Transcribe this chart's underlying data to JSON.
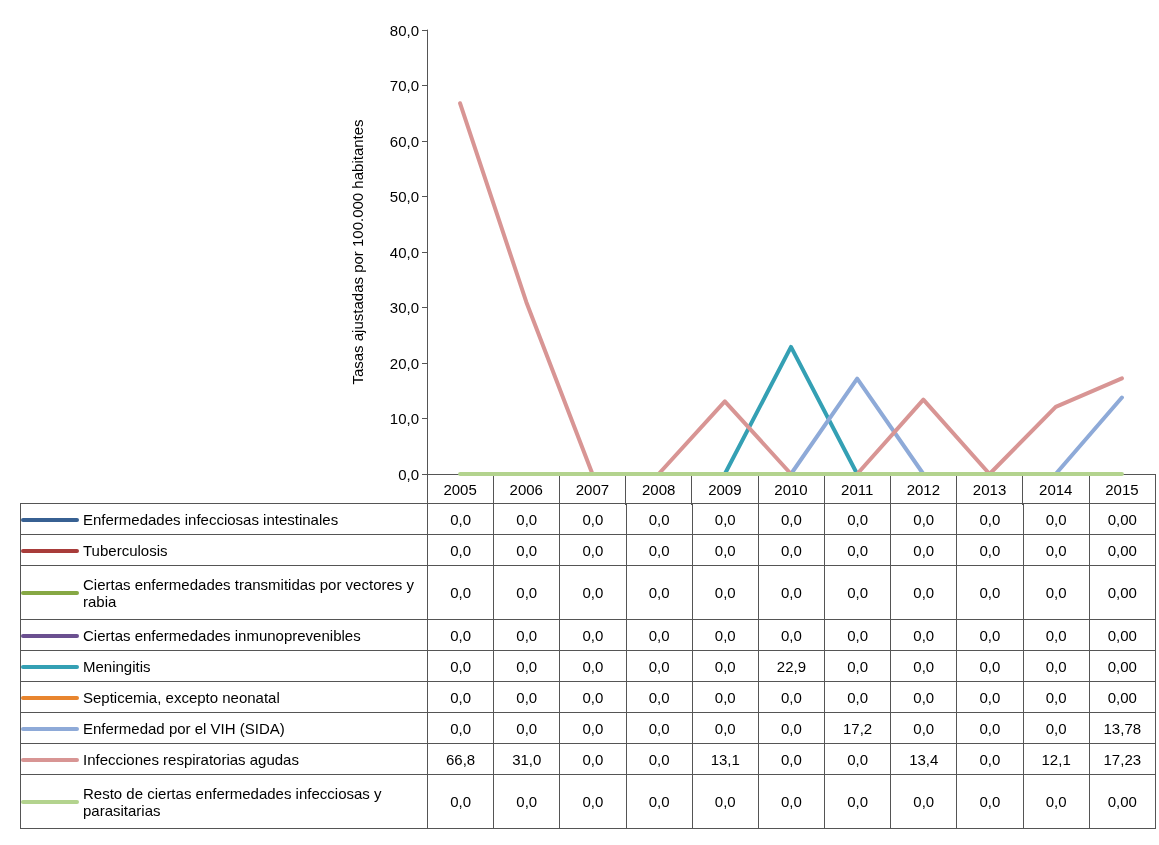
{
  "chart_data": {
    "type": "line",
    "ylabel": "Tasas ajustadas por 100.000 habitantes",
    "categories": [
      "2005",
      "2006",
      "2007",
      "2008",
      "2009",
      "2010",
      "2011",
      "2012",
      "2013",
      "2014",
      "2015"
    ],
    "ylim": [
      0,
      80
    ],
    "yticks": [
      {
        "value": 0,
        "label": "0,0"
      },
      {
        "value": 10,
        "label": "10,0"
      },
      {
        "value": 20,
        "label": "20,0"
      },
      {
        "value": 30,
        "label": "30,0"
      },
      {
        "value": 40,
        "label": "40,0"
      },
      {
        "value": 50,
        "label": "50,0"
      },
      {
        "value": 60,
        "label": "60,0"
      },
      {
        "value": 70,
        "label": "70,0"
      },
      {
        "value": 80,
        "label": "80,0"
      }
    ],
    "grid": false,
    "legend": "bottom",
    "marker": "none",
    "line_style": "solid",
    "series": [
      {
        "name": "Enfermedades infecciosas intestinales",
        "color": "#376092",
        "values": [
          null,
          null,
          null,
          null,
          null,
          null,
          null,
          null,
          null,
          null,
          null
        ],
        "value_labels": [
          "0,0",
          "0,0",
          "0,0",
          "0,0",
          "0,0",
          "0,0",
          "0,0",
          "0,0",
          "0,0",
          "0,0",
          "0,00"
        ]
      },
      {
        "name": "Tuberculosis",
        "color": "#a83c3a",
        "values": [
          null,
          null,
          null,
          null,
          null,
          null,
          null,
          null,
          null,
          null,
          null
        ],
        "value_labels": [
          "0,0",
          "0,0",
          "0,0",
          "0,0",
          "0,0",
          "0,0",
          "0,0",
          "0,0",
          "0,0",
          "0,0",
          "0,00"
        ]
      },
      {
        "name": "Ciertas enfermedades transmitidas por vectores y rabia",
        "color": "#86a844",
        "values": [
          null,
          null,
          null,
          null,
          null,
          null,
          null,
          null,
          null,
          null,
          null
        ],
        "value_labels": [
          "0,0",
          "0,0",
          "0,0",
          "0,0",
          "0,0",
          "0,0",
          "0,0",
          "0,0",
          "0,0",
          "0,0",
          "0,00"
        ]
      },
      {
        "name": "Ciertas enfermedades inmunoprevenibles",
        "color": "#6b5090",
        "values": [
          null,
          null,
          null,
          null,
          null,
          null,
          null,
          null,
          null,
          null,
          null
        ],
        "value_labels": [
          "0,0",
          "0,0",
          "0,0",
          "0,0",
          "0,0",
          "0,0",
          "0,0",
          "0,0",
          "0,0",
          "0,0",
          "0,00"
        ]
      },
      {
        "name": "Meningitis",
        "color": "#34a0b4",
        "values": [
          null,
          null,
          null,
          null,
          0,
          22.9,
          0,
          null,
          null,
          null,
          null
        ],
        "value_labels": [
          "0,0",
          "0,0",
          "0,0",
          "0,0",
          "0,0",
          "22,9",
          "0,0",
          "0,0",
          "0,0",
          "0,0",
          "0,00"
        ]
      },
      {
        "name": "Septicemia, excepto neonatal",
        "color": "#e8852e",
        "values": [
          null,
          null,
          null,
          null,
          null,
          null,
          null,
          null,
          null,
          null,
          null
        ],
        "value_labels": [
          "0,0",
          "0,0",
          "0,0",
          "0,0",
          "0,0",
          "0,0",
          "0,0",
          "0,0",
          "0,0",
          "0,0",
          "0,00"
        ]
      },
      {
        "name": "Enfermedad por el VIH (SIDA)",
        "color": "#8eaad8",
        "values": [
          null,
          null,
          null,
          null,
          null,
          0,
          17.2,
          0,
          null,
          0,
          13.78
        ],
        "value_labels": [
          "0,0",
          "0,0",
          "0,0",
          "0,0",
          "0,0",
          "0,0",
          "17,2",
          "0,0",
          "0,0",
          "0,0",
          "13,78"
        ]
      },
      {
        "name": "Infecciones respiratorias agudas",
        "color": "#d89594",
        "values": [
          66.8,
          31.0,
          0,
          0,
          13.1,
          0,
          0,
          13.4,
          0,
          12.1,
          17.23
        ],
        "value_labels": [
          "66,8",
          "31,0",
          "0,0",
          "0,0",
          "13,1",
          "0,0",
          "0,0",
          "13,4",
          "0,0",
          "12,1",
          "17,23"
        ]
      },
      {
        "name": "Resto de ciertas enfermedades infecciosas y parasitarias",
        "color": "#b3d38e",
        "values": [
          0,
          0,
          0,
          0,
          0,
          0,
          0,
          0,
          0,
          0,
          0
        ],
        "value_labels": [
          "0,0",
          "0,0",
          "0,0",
          "0,0",
          "0,0",
          "0,0",
          "0,0",
          "0,0",
          "0,0",
          "0,0",
          "0,00"
        ]
      }
    ]
  }
}
